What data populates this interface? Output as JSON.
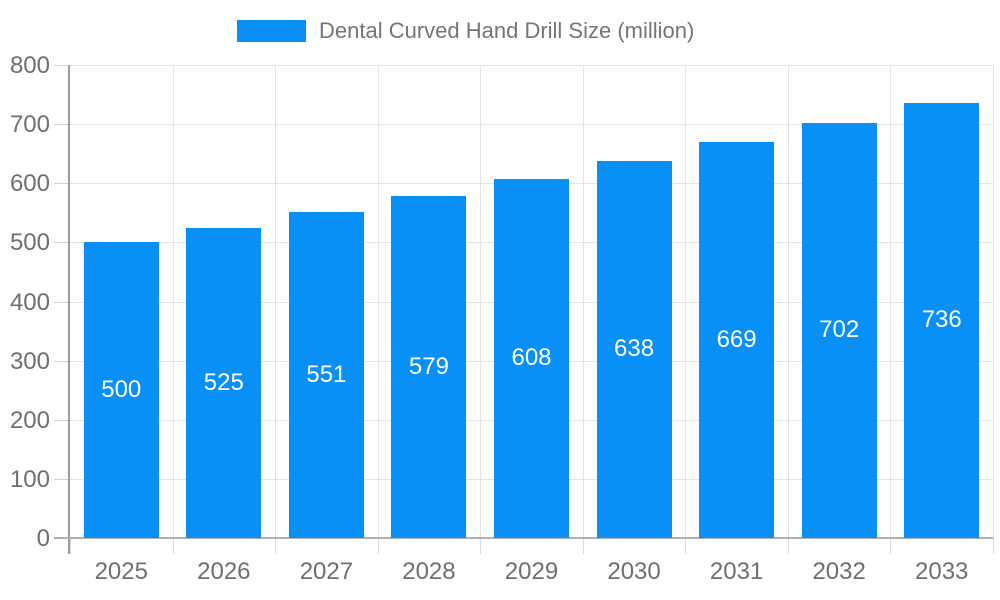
{
  "legend": {
    "label": "Dental Curved Hand Drill Size (million)"
  },
  "chart_data": {
    "type": "bar",
    "title": "Dental Curved Hand Drill Size (million)",
    "categories": [
      "2025",
      "2026",
      "2027",
      "2028",
      "2029",
      "2030",
      "2031",
      "2032",
      "2033"
    ],
    "values": [
      500,
      525,
      551,
      579,
      608,
      638,
      669,
      702,
      736
    ],
    "xlabel": "",
    "ylabel": "",
    "ylim": [
      0,
      800
    ],
    "ytick_step": 100,
    "yticks": [
      0,
      100,
      200,
      300,
      400,
      500,
      600,
      700,
      800
    ],
    "grid": true,
    "legend_position": "top-center",
    "colors": {
      "bar": "#0990f6",
      "value_label": "#ffffff",
      "axis_label": "#6f6f6f",
      "legend_text": "#757575"
    }
  }
}
